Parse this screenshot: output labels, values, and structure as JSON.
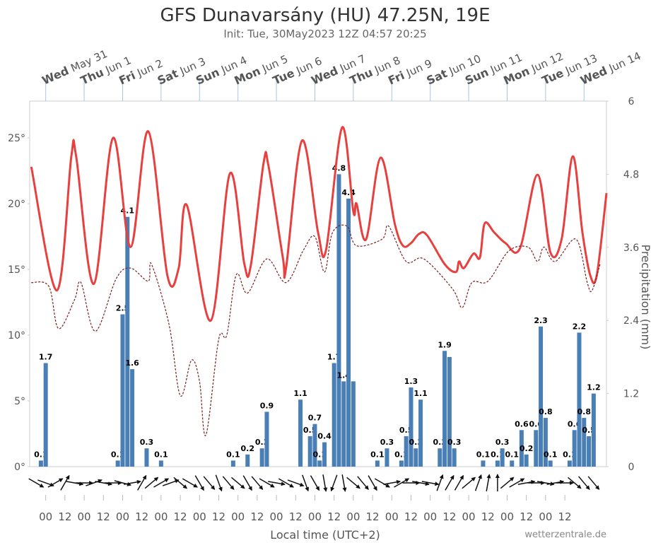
{
  "chart_data": {
    "type": "line",
    "title": "GFS Dunavarsány (HU) 47.25N, 19E",
    "subtitle": "Init: Tue, 30May2023 12Z 04:57 20:25",
    "xlabel": "Local time (UTC+2)",
    "credit": "wetterzentrale.de",
    "y2label": "Precipitation (mm)",
    "xlim": [
      -10,
      350
    ],
    "xticks": [
      {
        "value": 0,
        "label": "00"
      },
      {
        "value": 12,
        "label": "12"
      },
      {
        "value": 24,
        "label": "00"
      },
      {
        "value": 36,
        "label": "12"
      },
      {
        "value": 48,
        "label": "00"
      },
      {
        "value": 60,
        "label": "12"
      },
      {
        "value": 72,
        "label": "00"
      },
      {
        "value": 84,
        "label": "12"
      },
      {
        "value": 96,
        "label": "00"
      },
      {
        "value": 108,
        "label": "12"
      },
      {
        "value": 120,
        "label": "00"
      },
      {
        "value": 132,
        "label": "12"
      },
      {
        "value": 144,
        "label": "00"
      },
      {
        "value": 156,
        "label": "12"
      },
      {
        "value": 168,
        "label": "00"
      },
      {
        "value": 180,
        "label": "12"
      },
      {
        "value": 192,
        "label": "00"
      },
      {
        "value": 204,
        "label": "12"
      },
      {
        "value": 216,
        "label": "00"
      },
      {
        "value": 228,
        "label": "12"
      },
      {
        "value": 240,
        "label": "00"
      },
      {
        "value": 252,
        "label": "12"
      },
      {
        "value": 264,
        "label": "00"
      },
      {
        "value": 276,
        "label": "12"
      },
      {
        "value": 288,
        "label": "00"
      },
      {
        "value": 300,
        "label": "12"
      },
      {
        "value": 312,
        "label": "00"
      },
      {
        "value": 324,
        "label": "12"
      }
    ],
    "day_ticks": [
      {
        "value": 0,
        "weekday": "Wed",
        "date": "May 31"
      },
      {
        "value": 24,
        "weekday": "Thu",
        "date": "Jun 1"
      },
      {
        "value": 48,
        "weekday": "Fri",
        "date": "Jun 2"
      },
      {
        "value": 72,
        "weekday": "Sat",
        "date": "Jun 3"
      },
      {
        "value": 96,
        "weekday": "Sun",
        "date": "Jun 4"
      },
      {
        "value": 120,
        "weekday": "Mon",
        "date": "Jun 5"
      },
      {
        "value": 144,
        "weekday": "Tue",
        "date": "Jun 6"
      },
      {
        "value": 168,
        "weekday": "Wed",
        "date": "Jun 7"
      },
      {
        "value": 192,
        "weekday": "Thu",
        "date": "Jun 8"
      },
      {
        "value": 216,
        "weekday": "Fri",
        "date": "Jun 9"
      },
      {
        "value": 240,
        "weekday": "Sat",
        "date": "Jun 10"
      },
      {
        "value": 264,
        "weekday": "Sun",
        "date": "Jun 11"
      },
      {
        "value": 288,
        "weekday": "Mon",
        "date": "Jun 12"
      },
      {
        "value": 312,
        "weekday": "Tue",
        "date": "Jun 13"
      },
      {
        "value": 336,
        "weekday": "Wed",
        "date": "Jun 14"
      }
    ],
    "ylim": [
      0,
      27.8
    ],
    "yticks": [
      {
        "value": 0,
        "label": "0°"
      },
      {
        "value": 5,
        "label": "5°"
      },
      {
        "value": 10,
        "label": "10°"
      },
      {
        "value": 15,
        "label": "15°"
      },
      {
        "value": 20,
        "label": "20°"
      },
      {
        "value": 25,
        "label": "25°"
      }
    ],
    "y2lim": [
      0,
      6
    ],
    "y2ticks": [
      0,
      1.2,
      2.4,
      3.6,
      4.8,
      6
    ],
    "series": [
      {
        "type": "bar",
        "axis": "y2",
        "color": "#4a7fb5",
        "x": [
          -3,
          0,
          45,
          48,
          51,
          54,
          63,
          72,
          117,
          126,
          135,
          138,
          159,
          165,
          168,
          171,
          174,
          180,
          183,
          186,
          189,
          192,
          207,
          213,
          222,
          225,
          228,
          231,
          234,
          246,
          249,
          252,
          255,
          273,
          282,
          285,
          291,
          297,
          300,
          306,
          309,
          312,
          315,
          327,
          330,
          333,
          336,
          339,
          342
        ],
        "values": [
          0.1,
          1.7,
          0.1,
          2.5,
          4.1,
          1.6,
          0.3,
          0.1,
          0.1,
          0.2,
          0.3,
          0.9,
          1.1,
          0.5,
          0.7,
          0.1,
          0.4,
          1.7,
          4.8,
          1.4,
          4.4,
          1.4,
          0.1,
          0.3,
          0.1,
          0.5,
          1.3,
          0.3,
          1.1,
          0.3,
          1.9,
          1.8,
          0.3,
          0.1,
          0.1,
          0.3,
          0.1,
          0.6,
          0.2,
          0.6,
          2.3,
          0.8,
          0.1,
          0.1,
          0.6,
          2.2,
          0.8,
          0.5,
          1.2
        ],
        "value_labels": [
          "0.1",
          "1.7",
          "0.1",
          "2.5",
          "4.1",
          "1.6",
          "0.3",
          "0.1",
          "0.1",
          "0.2",
          "0.3",
          "0.9",
          "1.1",
          "0.5",
          "0.7",
          "0.1",
          "0.4",
          "1.7",
          "4.8",
          "1.4",
          "4.4",
          null,
          "0.1",
          "0.3",
          "0.1",
          "0.5",
          "1.3",
          "0.3",
          "1.1",
          "0.3",
          "1.9",
          null,
          "0.3",
          "0.1",
          "0.1",
          "0.3",
          "0.1",
          "0.6",
          "0.2",
          "0.6",
          "2.3",
          "0.8",
          "0.1",
          "0.1",
          "0.6",
          "2.2",
          "0.8",
          "0.5",
          "1.2"
        ]
      },
      {
        "type": "line",
        "color": "#e8403f",
        "dashed": false,
        "x": [
          -9,
          7,
          16,
          19,
          30,
          42,
          53,
          64,
          76,
          83,
          88,
          103,
          115,
          124,
          128,
          136,
          139,
          148,
          150,
          160,
          170,
          175,
          185,
          192,
          194,
          200,
          209,
          218,
          223,
          228,
          233,
          238,
          249,
          256,
          258,
          261,
          267,
          271,
          274,
          280,
          287,
          296,
          307,
          315,
          322,
          329,
          335,
          340,
          344,
          350
        ],
        "values": [
          22.8,
          13.4,
          23.6,
          23.6,
          13.9,
          25.0,
          16.7,
          25.5,
          14.5,
          15.1,
          19.9,
          11.1,
          22.3,
          15.4,
          15.3,
          23.1,
          22.9,
          15.9,
          15.1,
          24.8,
          17.8,
          16.5,
          25.8,
          19.4,
          20.0,
          17.3,
          23.5,
          18.4,
          16.8,
          17.0,
          17.7,
          17.6,
          15.4,
          14.8,
          15.6,
          15.1,
          16.2,
          15.9,
          18.5,
          17.8,
          17.0,
          16.6,
          22.2,
          16.3,
          17.3,
          23.6,
          17.8,
          14.5,
          14.6,
          20.8
        ]
      },
      {
        "type": "line",
        "color": "#7a1f1f",
        "dashed": true,
        "x": [
          -9,
          2,
          8,
          18,
          22,
          31,
          44,
          53,
          64,
          66,
          77,
          84,
          91,
          96,
          100,
          108,
          113,
          119,
          126,
          138,
          150,
          161,
          168,
          174,
          179,
          188,
          194,
          210,
          214,
          225,
          236,
          254,
          260,
          266,
          276,
          289,
          301,
          307,
          311,
          318,
          331,
          338,
          341,
          346
        ],
        "values": [
          14.0,
          13.7,
          10.5,
          12.7,
          14.0,
          10.3,
          14.3,
          15.1,
          14.1,
          15.4,
          10.8,
          5.4,
          8.1,
          6.5,
          2.4,
          9.7,
          10.0,
          14.6,
          13.2,
          15.8,
          14.0,
          16.5,
          17.5,
          14.8,
          17.8,
          18.3,
          16.8,
          17.3,
          18.3,
          15.6,
          15.8,
          13.5,
          12.1,
          14.0,
          14.1,
          16.4,
          16.7,
          15.6,
          16.7,
          15.6,
          17.3,
          14.0,
          13.4,
          15.4
        ]
      },
      {
        "type": "arrows",
        "color": "#111",
        "x": [
          -6,
          0,
          6,
          12,
          18,
          24,
          30,
          36,
          42,
          48,
          54,
          60,
          66,
          72,
          78,
          84,
          90,
          96,
          102,
          108,
          114,
          120,
          126,
          132,
          138,
          144,
          150,
          156,
          162,
          168,
          174,
          180,
          186,
          192,
          198,
          204,
          210,
          216,
          222,
          228,
          234,
          240,
          246,
          252,
          258,
          264,
          270,
          276,
          282,
          288,
          294,
          300,
          306,
          312,
          318,
          324,
          330,
          336,
          342
        ],
        "values": [
          300,
          290,
          240,
          210,
          280,
          270,
          250,
          280,
          270,
          285,
          260,
          210,
          230,
          240,
          250,
          310,
          300,
          330,
          320,
          340,
          320,
          310,
          330,
          320,
          300,
          280,
          300,
          290,
          340,
          330,
          350,
          20,
          350,
          310,
          320,
          330,
          300,
          260,
          240,
          270,
          280,
          280,
          200,
          210,
          210,
          230,
          200,
          190,
          180,
          230,
          240,
          260,
          270,
          280,
          260,
          270,
          310,
          320,
          320
        ]
      }
    ]
  }
}
